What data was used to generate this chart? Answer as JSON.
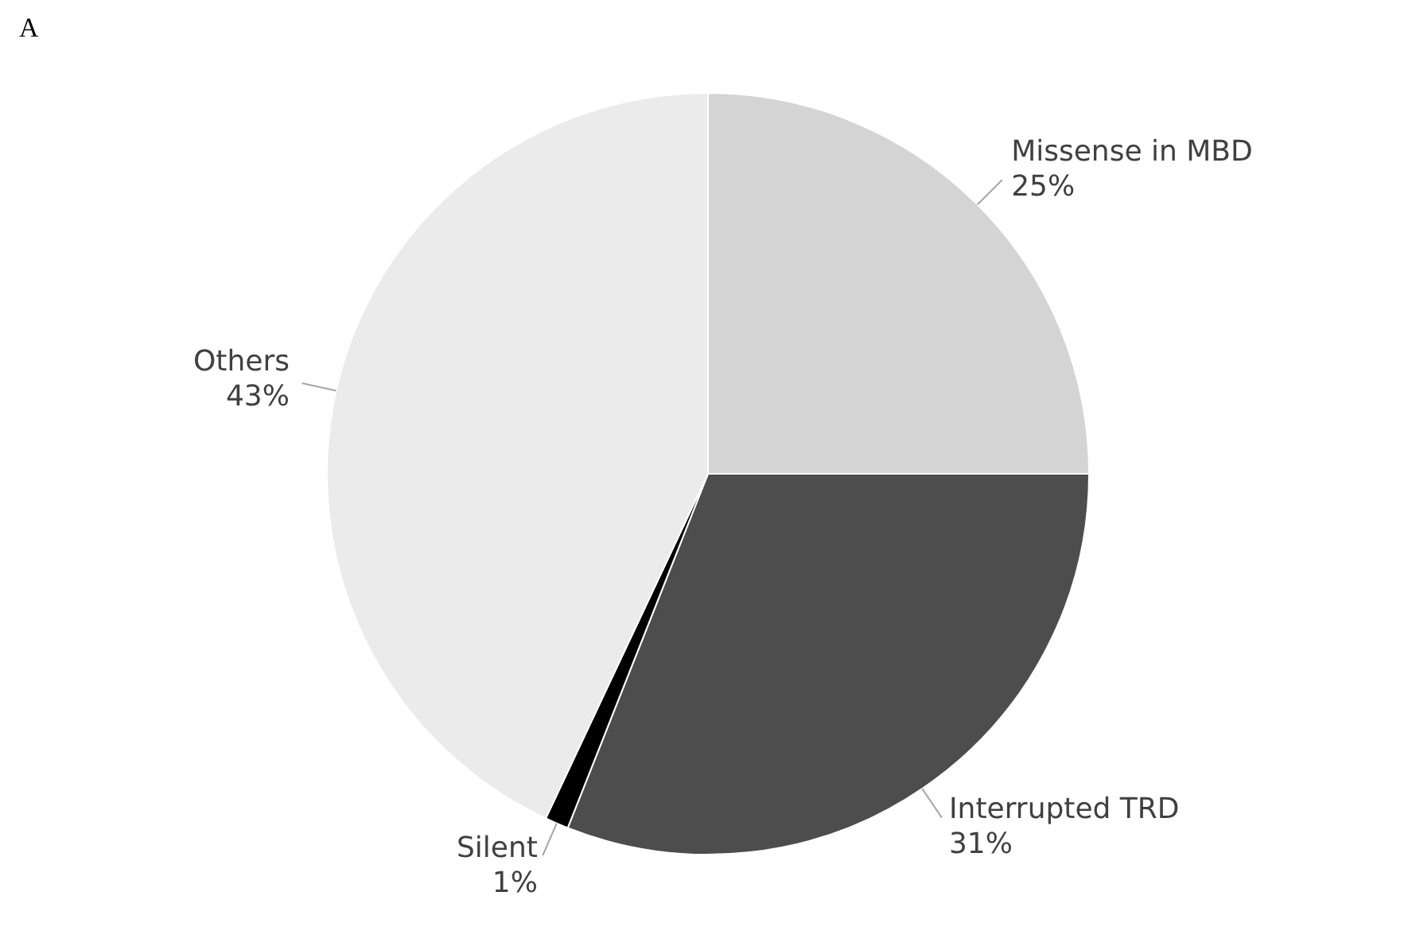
{
  "chart_data": {
    "type": "pie",
    "title": "A",
    "categories": [
      "Missense in MBD",
      "Interrupted TRD",
      "Silent",
      "Others"
    ],
    "values": [
      25,
      31,
      1,
      43
    ],
    "value_labels": [
      "25%",
      "31%",
      "1%",
      "43%"
    ],
    "colors": [
      "#d4d4d4",
      "#4d4d4d",
      "#000000",
      "#ebebeb"
    ],
    "legend": false
  }
}
